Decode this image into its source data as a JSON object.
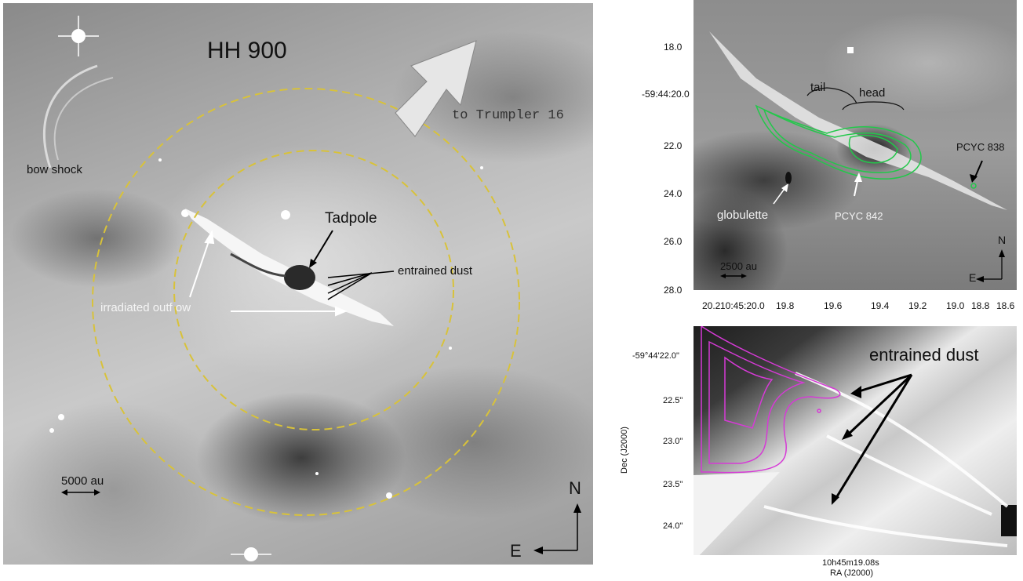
{
  "main_panel": {
    "title": "HH 900",
    "arrow_label": "to Trumpler 16",
    "bow_shock": "bow shock",
    "tadpole": "Tadpole",
    "entrained_dust": "entrained dust",
    "irradiated_outflow": "irradiated outf ow",
    "scale_label": "5000 au",
    "compass_north": "N",
    "compass_east": "E",
    "circle_color": "#d8c23a"
  },
  "top_right_panel": {
    "tail": "tail",
    "head": "head",
    "pcyc838": "PCYC 838",
    "pcyc842": "PCYC 842",
    "globulette": "globulette",
    "scale_label": "2500 au",
    "compass_north": "N",
    "compass_east": "E",
    "contour_color": "#22c84a",
    "y_ticks": [
      "18.0",
      "-59:44:20.0",
      "22.0",
      "24.0",
      "26.0",
      "28.0"
    ],
    "x_ticks": [
      "20.2",
      "10:45:20.0",
      "19.8",
      "19.6",
      "19.4",
      "19.2",
      "19.0",
      "18.8",
      "18.6"
    ]
  },
  "bottom_right_panel": {
    "label": "entrained dust",
    "y_ticks": [
      "-59°44'22.0\"",
      "22.5\"",
      "23.0\"",
      "23.5\"",
      "24.0\""
    ],
    "x_tick": "10h45m19.08s",
    "xlabel": "RA (J2000)",
    "ylabel": "Dec (J2000)",
    "contour_color": "#d63ad6"
  }
}
